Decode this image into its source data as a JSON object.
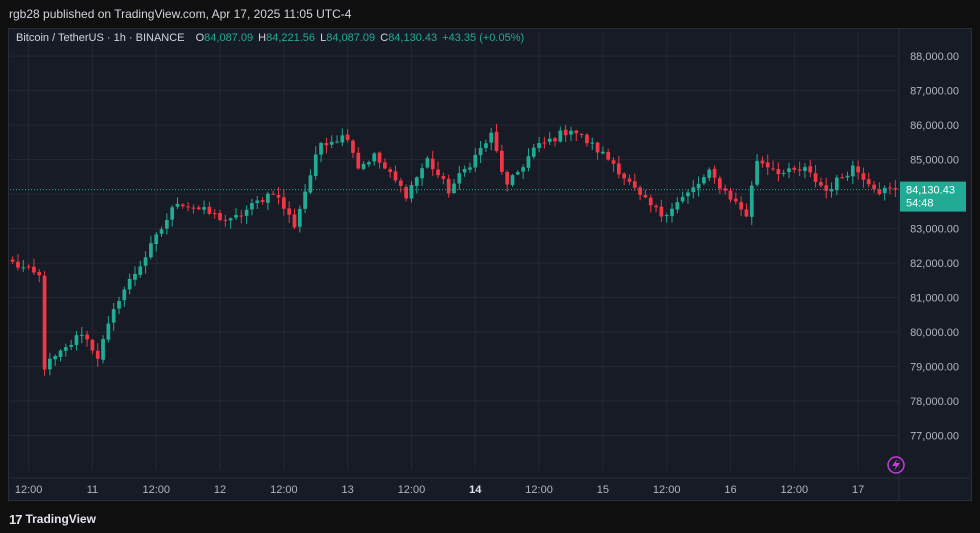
{
  "header": {
    "published": "rgb28 published on TradingView.com, Apr 17, 2025 11:05 UTC-4"
  },
  "legend": {
    "symbol": "Bitcoin / TetherUS · 1h · BINANCE",
    "open_label": "O",
    "open": "84,087.09",
    "high_label": "H",
    "high": "84,221.56",
    "low_label": "L",
    "low": "84,087.09",
    "close_label": "C",
    "close": "84,130.43",
    "change": "+43.35 (+0.05%)"
  },
  "price_tag": {
    "price": "84,130.43",
    "countdown": "54:48"
  },
  "footer": {
    "logo": "17",
    "brand": "TradingView"
  },
  "colors": {
    "up": "#22ab94",
    "down": "#f23645",
    "background": "#171b26",
    "grid": "#242836",
    "axis_text": "#b2b5be"
  },
  "chart_data": {
    "type": "candlestick",
    "title": "Bitcoin / TetherUS · 1h · BINANCE",
    "ylim": [
      76000,
      88700
    ],
    "y_ticks": [
      "88,000.00",
      "87,000.00",
      "86,000.00",
      "85,000.00",
      "84,000.00",
      "83,000.00",
      "82,000.00",
      "81,000.00",
      "80,000.00",
      "79,000.00",
      "78,000.00",
      "77,000.00"
    ],
    "y_tick_values": [
      88000,
      87000,
      86000,
      85000,
      84000,
      83000,
      82000,
      81000,
      80000,
      79000,
      78000,
      77000
    ],
    "x_ticks": [
      {
        "label": "12:00",
        "bar": 3,
        "bold": false
      },
      {
        "label": "11",
        "bar": 15,
        "bold": false
      },
      {
        "label": "12:00",
        "bar": 27,
        "bold": false
      },
      {
        "label": "12",
        "bar": 39,
        "bold": false
      },
      {
        "label": "12:00",
        "bar": 51,
        "bold": false
      },
      {
        "label": "13",
        "bar": 63,
        "bold": false
      },
      {
        "label": "12:00",
        "bar": 75,
        "bold": false
      },
      {
        "label": "14",
        "bar": 87,
        "bold": true
      },
      {
        "label": "12:00",
        "bar": 99,
        "bold": false
      },
      {
        "label": "15",
        "bar": 111,
        "bold": false
      },
      {
        "label": "12:00",
        "bar": 123,
        "bold": false
      },
      {
        "label": "16",
        "bar": 135,
        "bold": false
      },
      {
        "label": "12:00",
        "bar": 147,
        "bold": false
      },
      {
        "label": "17",
        "bar": 159,
        "bold": false
      }
    ],
    "last_price": 84130.43,
    "key_closes": [
      82000,
      81600,
      79000,
      79500,
      80000,
      79300,
      81000,
      82200,
      83800,
      83200,
      84100,
      83100,
      84100,
      85500,
      85700,
      84800,
      85100,
      84000,
      85000,
      84100,
      85700,
      84200,
      85300,
      85900,
      84900,
      83900,
      83400,
      84000,
      84600,
      83400,
      85000,
      84600,
      84700,
      84100,
      84800,
      84100,
      84130.43
    ],
    "key_bars": [
      0,
      5,
      6,
      10,
      13,
      16,
      20,
      25,
      31,
      41,
      49,
      53,
      55,
      58,
      63,
      65,
      68,
      74,
      78,
      82,
      90,
      93,
      98,
      105,
      113,
      118,
      122,
      127,
      131,
      138,
      140,
      145,
      149,
      153,
      158,
      163,
      166
    ],
    "bar_count": 167
  }
}
